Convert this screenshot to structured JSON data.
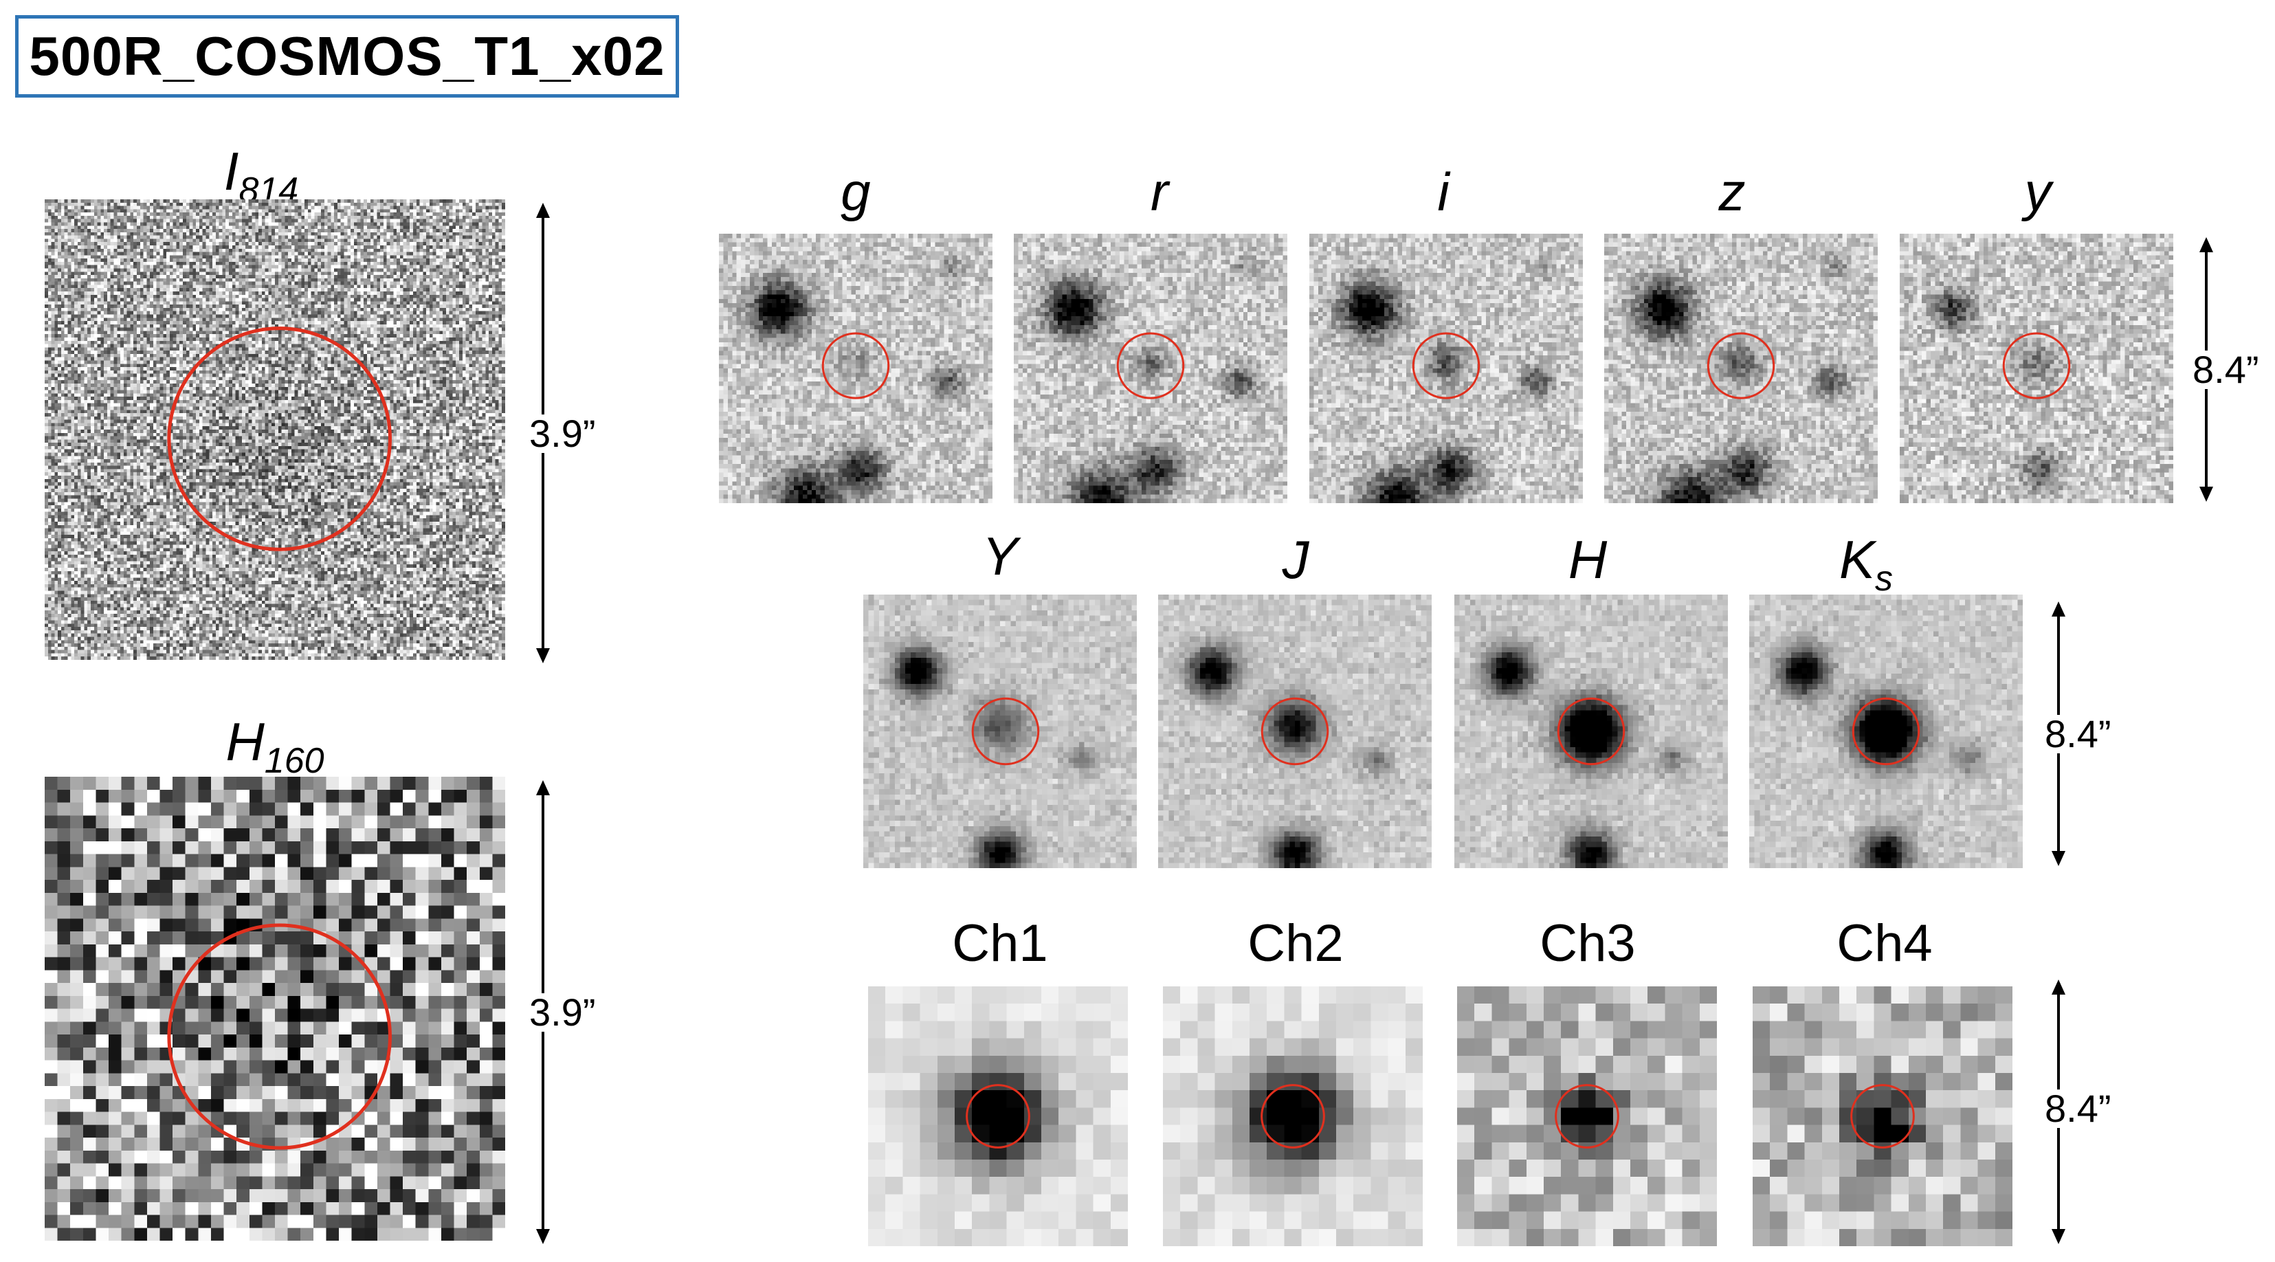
{
  "title": "500R_COSMOS_T1_x02",
  "hst": [
    {
      "band": "I",
      "sub": "814",
      "scale": "3.9”"
    },
    {
      "band": "H",
      "sub": "160",
      "scale": "3.9”"
    }
  ],
  "optical": {
    "bands": [
      "g",
      "r",
      "i",
      "z",
      "y"
    ],
    "scale": "8.4”"
  },
  "nir": {
    "bands": [
      {
        "band": "Y",
        "sub": ""
      },
      {
        "band": "J",
        "sub": ""
      },
      {
        "band": "H",
        "sub": ""
      },
      {
        "band": "K",
        "sub": "s"
      }
    ],
    "scale": "8.4”"
  },
  "irac": {
    "channels": [
      "Ch1",
      "Ch2",
      "Ch3",
      "Ch4"
    ],
    "scale": "8.4”"
  },
  "colors": {
    "aperture": "#e0301e",
    "title_border": "#2e75b6"
  }
}
